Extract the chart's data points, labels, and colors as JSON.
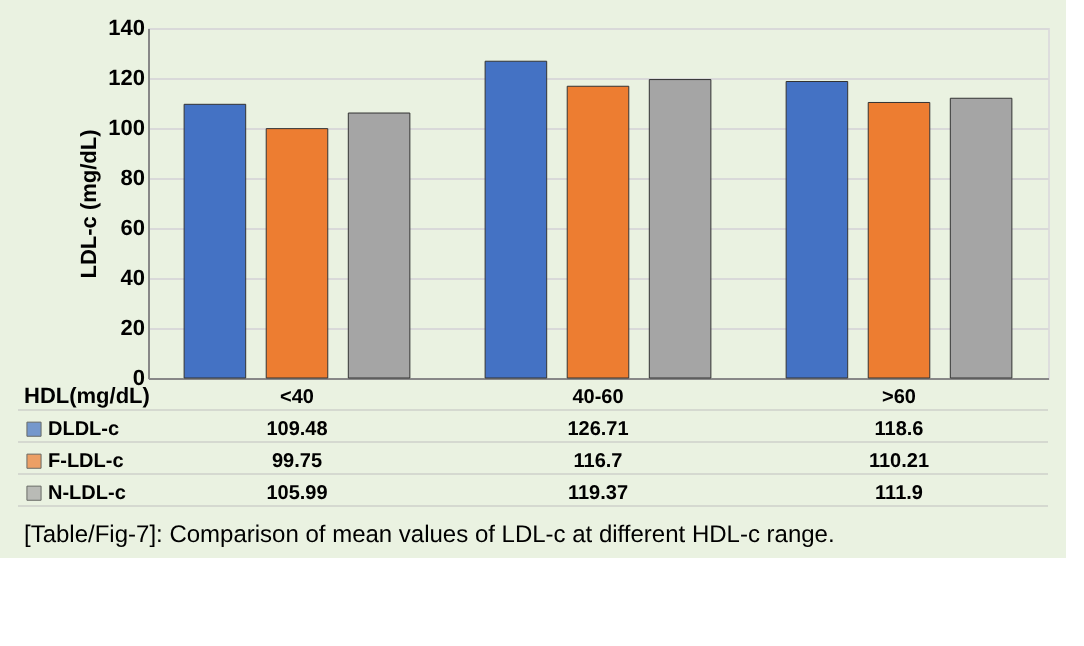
{
  "chart_data": {
    "type": "bar",
    "xlabel": "HDL(mg/dL)",
    "ylabel": "LDL-c (mg/dL)",
    "categories": [
      "<40",
      "40-60",
      ">60"
    ],
    "series": [
      {
        "name": "DLDL-c",
        "color": "#4472c4",
        "values": [
          109.48,
          126.71,
          118.6
        ]
      },
      {
        "name": "F-LDL-c",
        "color": "#ed7d31",
        "values": [
          99.75,
          116.7,
          110.21
        ]
      },
      {
        "name": "N-LDL-c",
        "color": "#a5a5a5",
        "values": [
          105.99,
          119.37,
          111.9
        ]
      }
    ],
    "ylim": [
      0,
      140
    ],
    "yticks": [
      0,
      20,
      40,
      60,
      80,
      100,
      120,
      140
    ],
    "grid": "y",
    "legend": "bottom",
    "data_labels": true,
    "annotations": [
      "[Table/Fig-7]: Comparison of mean values of LDL-c at different HDL-c range."
    ]
  }
}
